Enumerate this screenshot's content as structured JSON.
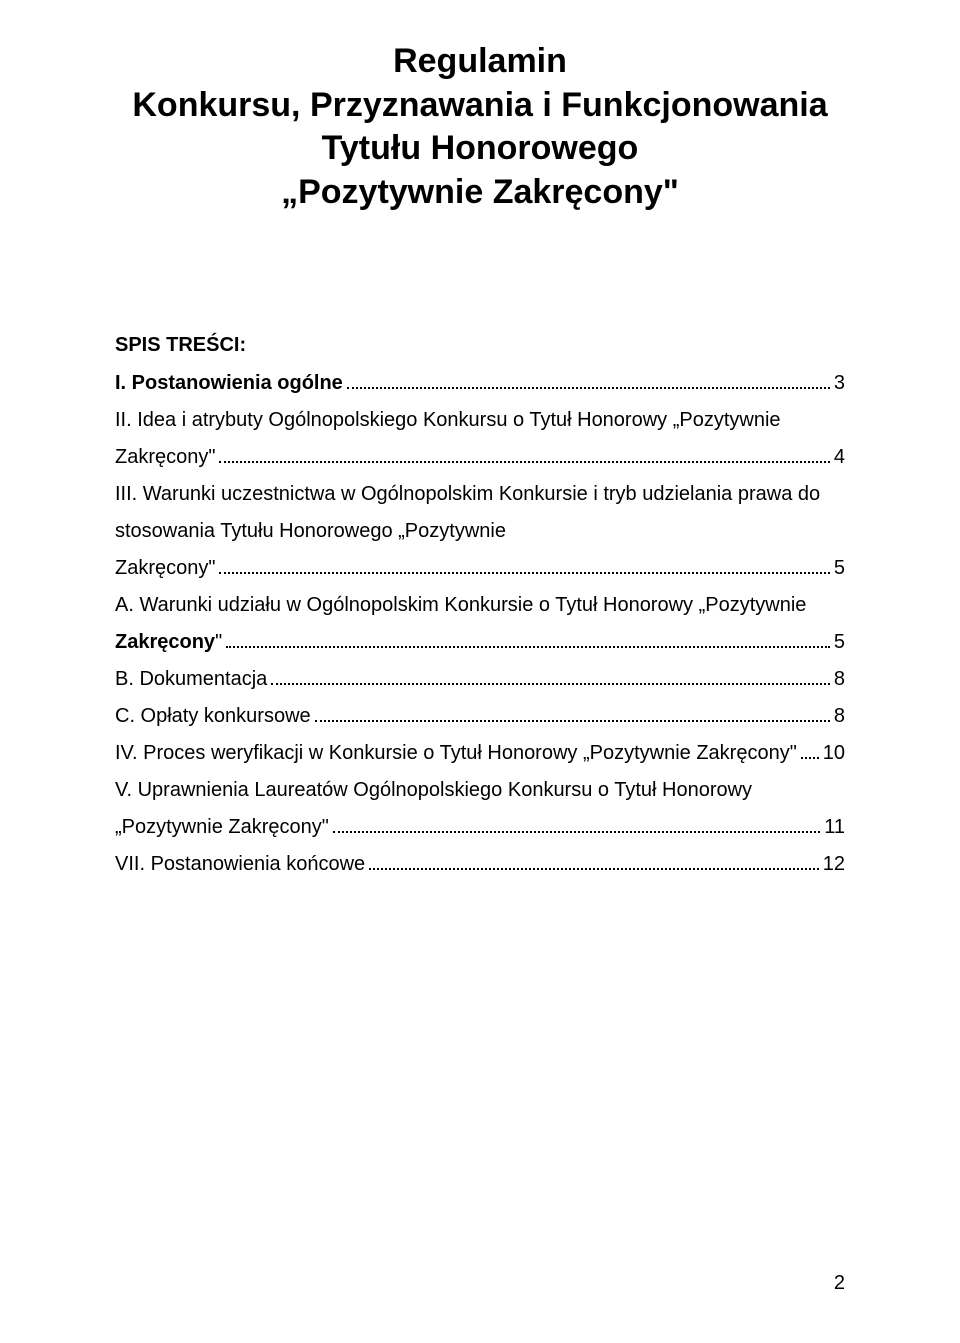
{
  "title": {
    "line1": "Regulamin",
    "line2": "Konkursu, Przyznawania i Funkcjonowania",
    "line3": "Tytułu Honorowego",
    "line4": "„Pozytywnie Zakręcony\""
  },
  "spisTresciLabel": "SPIS TREŚCI:",
  "toc": {
    "i": {
      "bold": "I. Postanowienia ogólne",
      "rest": "",
      "page": "3"
    },
    "ii": {
      "bold": "II. Idea i atrybuty Ogólnopolskiego Konkursu o Tytuł Honorowy „Pozytywnie",
      "line2bold": "Zakręcony\"",
      "page": "4"
    },
    "iii": {
      "bold": "III. Warunki uczestnictwa w Ogólnopolskim Konkursie i tryb udzielania prawa do",
      "line2bold": "stosowania Tytułu Honorowego „Pozytywnie",
      "line3bold": "Zakręcony\"",
      "page": "5"
    },
    "a": {
      "bold": "A. Warunki udziału w Ogólnopolskim Konkursie o Tytuł Honorowy „Pozytywnie",
      "line2bold": "Zakręcony",
      "line2rest": "\"",
      "page": "5"
    },
    "b": {
      "bold": "B. Dokumentacja",
      "page": "8"
    },
    "c": {
      "bold": "C. Opłaty konkursowe",
      "page": "8"
    },
    "iv": {
      "bold": "IV. Proces weryfikacji w Konkursie o Tytuł Honorowy „Pozytywnie Zakręcony\"",
      "page": "10"
    },
    "v": {
      "bold": "V. Uprawnienia Laureatów Ogólnopolskiego Konkursu o Tytuł Honorowy",
      "line2bold": "„Pozytywnie Zakręcony\"",
      "page": "11"
    },
    "vii": {
      "bold": "VII. Postanowienia końcowe",
      "page": "12"
    }
  },
  "pageNumber": "2",
  "style": {
    "pageWidth": 960,
    "pageHeight": 1343,
    "background": "#ffffff",
    "textColor": "#000000",
    "titleFontSize": 34,
    "bodyFontSize": 20,
    "fontFamily": "Arial"
  }
}
